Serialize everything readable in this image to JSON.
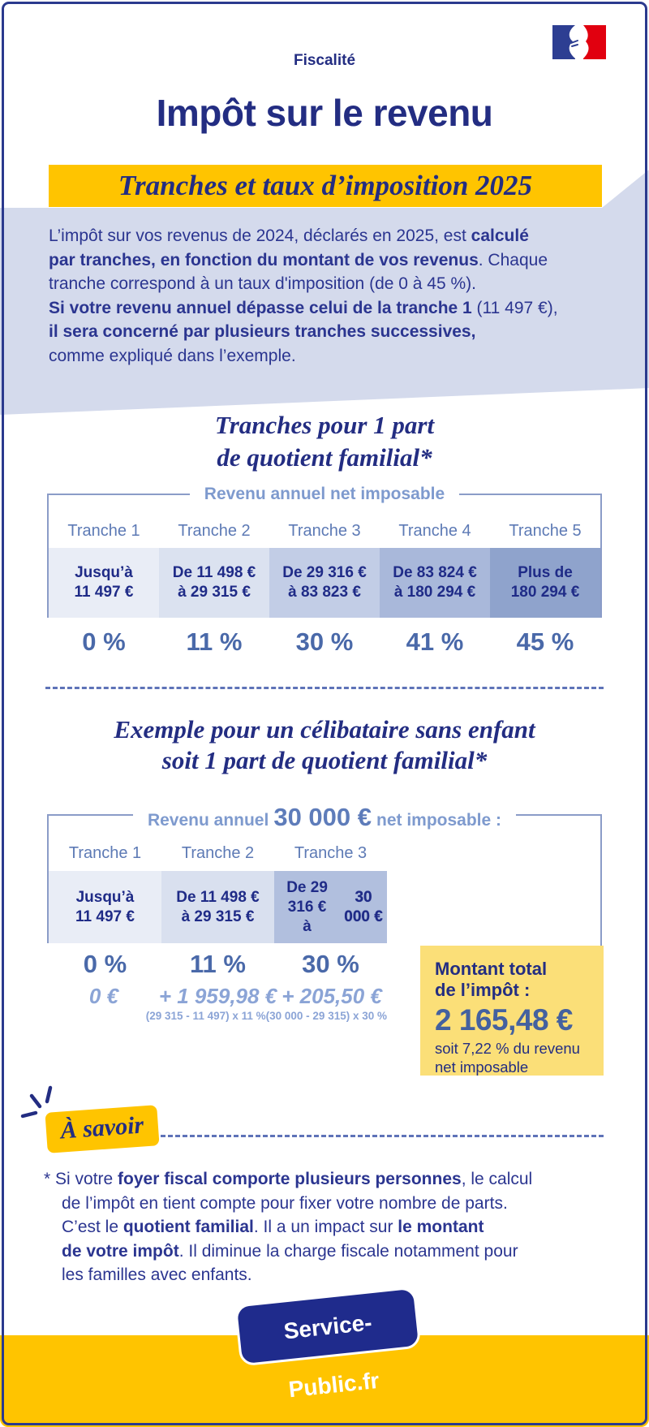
{
  "colors": {
    "navy": "#232d82",
    "body_blue": "#2b3590",
    "yellow": "#ffc400",
    "pale_yellow": "#fbdf78",
    "lavender": "#d4daec",
    "steel": "#4a69a9",
    "label_blue": "#5d7ab5",
    "header_blue": "#7e9ace",
    "amount_blue": "#8ba4d6",
    "flag_blue": "#2d3e92",
    "flag_red": "#e1000f"
  },
  "header": {
    "kicker": "Fiscalité",
    "title": "Impôt sur le revenu",
    "banner": "Tranches et taux d’imposition 2025",
    "flag_icon": "french-government-marianne-flag"
  },
  "intro": "L’impôt sur vos revenus de 2024, déclarés en 2025, est **calculé\npar tranches, en fonction du montant de vos revenus**. Chaque\ntranche correspond à un taux d'imposition (de 0 à 45 %).\n**Si votre revenu annuel dépasse celui de la tranche 1** (11 497 €),\n**il sera concerné par plusieurs tranches successives,**\ncomme expliqué dans l’exemple.",
  "section1": {
    "heading_line1": "Tranches pour 1 part",
    "heading_line2": "de quotient familial*"
  },
  "table1": {
    "header": "Revenu annuel net imposable",
    "columns": [
      {
        "label": "Tranche 1",
        "range": "Jusqu’à\n11 497 €",
        "rate": "0 %",
        "bg": "#e9edf6"
      },
      {
        "label": "Tranche 2",
        "range": "De 11 498 €\nà 29 315 €",
        "rate": "11 %",
        "bg": "#dbe2f0"
      },
      {
        "label": "Tranche 3",
        "range": "De 29 316 €\nà 83 823 €",
        "rate": "30 %",
        "bg": "#c2cde6"
      },
      {
        "label": "Tranche 4",
        "range": "De 83 824 €\nà 180 294 €",
        "rate": "41 %",
        "bg": "#a9b8da"
      },
      {
        "label": "Tranche 5",
        "range": "Plus de\n180 294 €",
        "rate": "45 %",
        "bg": "#8fa3cc"
      }
    ]
  },
  "section2": {
    "heading_line1": "Exemple pour un célibataire sans enfant",
    "heading_line2": "soit 1 part de quotient familial*"
  },
  "table2": {
    "header_prefix": "Revenu annuel",
    "header_amount": "30 000 €",
    "header_suffix": "net imposable :",
    "columns": [
      {
        "label": "Tranche 1",
        "range": "Jusqu’à\n11 497 €",
        "rate": "0 %",
        "amount": "0 €",
        "formula": "",
        "bg": "#e9edf6"
      },
      {
        "label": "Tranche 2",
        "range": "De 11 498 €\nà 29 315 €",
        "rate": "11 %",
        "amount": "+ 1 959,98 €",
        "formula": "(29 315 - 11 497) x 11 %",
        "bg": "#d9e0ef"
      },
      {
        "label": "Tranche 3",
        "range": "De 29 316 €\nà **30 000 €**",
        "rate": "30 %",
        "amount": "+ 205,50 €",
        "formula": "(30 000 - 29 315) x 30 %",
        "bg": "#b1bfde"
      }
    ],
    "total_box": {
      "title": "Montant total\nde l’impôt :",
      "amount": "2 165,48 €",
      "note": "soit 7,22 % du revenu\nnet imposable"
    }
  },
  "callout": {
    "badge": "À savoir",
    "sparkle_icon": "sparkle-rays",
    "footnote": "* Si votre **foyer fiscal comporte plusieurs personnes**, le calcul\nde l’impôt en tient compte pour fixer votre nombre de parts.\nC’est le **quotient familial**. Il a un impact sur **le montant\nde votre impôt**. Il diminue la charge fiscale notamment pour\nles familles avec enfants.",
    "footer_logo": "Service-Public.fr"
  }
}
